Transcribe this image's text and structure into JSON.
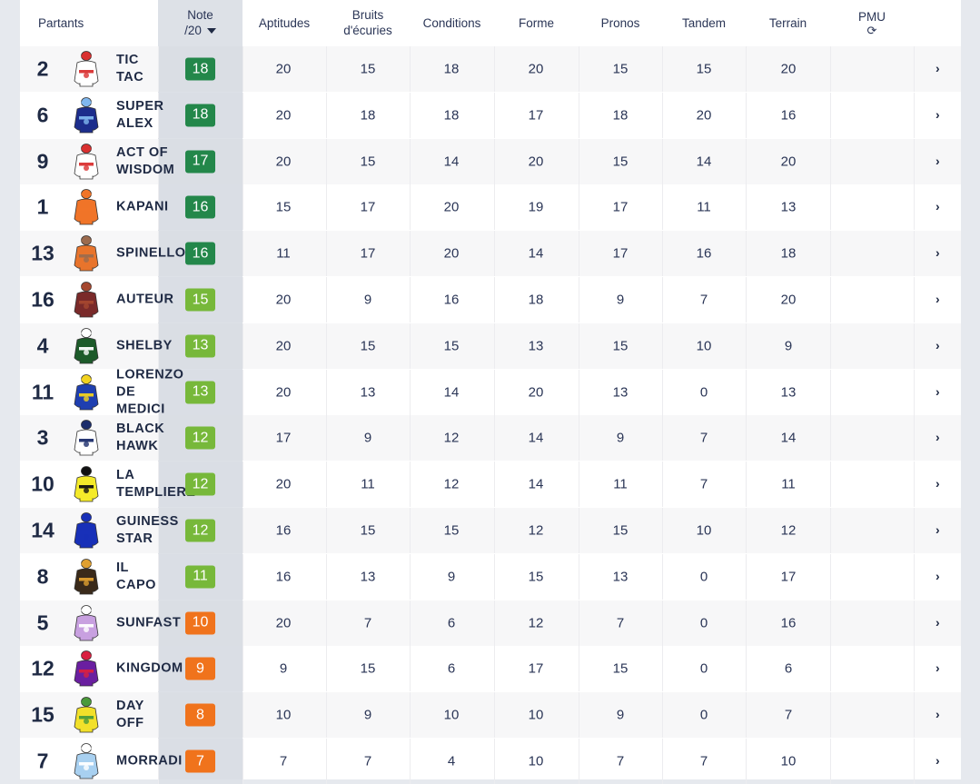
{
  "header": {
    "partants": "Partants",
    "note_line1": "Note",
    "note_line2": "/20",
    "aptitudes": "Aptitudes",
    "bruits_line1": "Bruits",
    "bruits_line2": "d'écuries",
    "conditions": "Conditions",
    "forme": "Forme",
    "pronos": "Pronos",
    "tandem": "Tandem",
    "terrain": "Terrain",
    "pmu": "PMU",
    "refresh_glyph": "⟳"
  },
  "colors": {
    "dark_green": "#23874a",
    "light_green": "#77b83a",
    "orange": "#f0731c"
  },
  "chevron": "›",
  "rows": [
    {
      "num": "2",
      "name": "TIC\nTAC",
      "note": "18",
      "note_color": "#23874a",
      "silk": [
        "#ffffff",
        "#d93030"
      ],
      "apt": "20",
      "bruits": "15",
      "cond": "18",
      "forme": "20",
      "pronos": "15",
      "tandem": "15",
      "terrain": "20"
    },
    {
      "num": "6",
      "name": "SUPER\nALEX",
      "note": "18",
      "note_color": "#23874a",
      "silk": [
        "#1c2d8c",
        "#7fb7ef"
      ],
      "apt": "20",
      "bruits": "18",
      "cond": "18",
      "forme": "17",
      "pronos": "18",
      "tandem": "20",
      "terrain": "16"
    },
    {
      "num": "9",
      "name": "ACT OF\nWISDOM",
      "note": "17",
      "note_color": "#23874a",
      "silk": [
        "#ffffff",
        "#d93030"
      ],
      "apt": "20",
      "bruits": "15",
      "cond": "14",
      "forme": "20",
      "pronos": "15",
      "tandem": "14",
      "terrain": "20"
    },
    {
      "num": "1",
      "name": "KAPANI",
      "note": "16",
      "note_color": "#23874a",
      "silk": [
        "#f07428",
        "#f07428"
      ],
      "apt": "15",
      "bruits": "17",
      "cond": "20",
      "forme": "19",
      "pronos": "17",
      "tandem": "11",
      "terrain": "13"
    },
    {
      "num": "13",
      "name": "SPINELLO",
      "note": "16",
      "note_color": "#23874a",
      "silk": [
        "#e8742c",
        "#9c6b4e"
      ],
      "apt": "11",
      "bruits": "17",
      "cond": "20",
      "forme": "14",
      "pronos": "17",
      "tandem": "16",
      "terrain": "18"
    },
    {
      "num": "16",
      "name": "AUTEUR",
      "note": "15",
      "note_color": "#77b83a",
      "silk": [
        "#7a2a2a",
        "#a5472f"
      ],
      "apt": "20",
      "bruits": "9",
      "cond": "16",
      "forme": "18",
      "pronos": "9",
      "tandem": "7",
      "terrain": "20"
    },
    {
      "num": "4",
      "name": "SHELBY",
      "note": "13",
      "note_color": "#77b83a",
      "silk": [
        "#1d5b2a",
        "#ffffff"
      ],
      "apt": "20",
      "bruits": "15",
      "cond": "15",
      "forme": "13",
      "pronos": "15",
      "tandem": "10",
      "terrain": "9"
    },
    {
      "num": "11",
      "name": "LORENZO\nDE\nMEDICI",
      "note": "13",
      "note_color": "#77b83a",
      "silk": [
        "#1f3fb0",
        "#f2d21f"
      ],
      "apt": "20",
      "bruits": "13",
      "cond": "14",
      "forme": "20",
      "pronos": "13",
      "tandem": "0",
      "terrain": "13"
    },
    {
      "num": "3",
      "name": "BLACK\nHAWK",
      "note": "12",
      "note_color": "#77b83a",
      "silk": [
        "#ffffff",
        "#1c2d6b"
      ],
      "apt": "17",
      "bruits": "9",
      "cond": "12",
      "forme": "14",
      "pronos": "9",
      "tandem": "7",
      "terrain": "14"
    },
    {
      "num": "10",
      "name": "LA\nTEMPLIERE",
      "note": "12",
      "note_color": "#77b83a",
      "silk": [
        "#f4ea2a",
        "#111111"
      ],
      "apt": "20",
      "bruits": "11",
      "cond": "12",
      "forme": "14",
      "pronos": "11",
      "tandem": "7",
      "terrain": "11"
    },
    {
      "num": "14",
      "name": "GUINESS\nSTAR",
      "note": "12",
      "note_color": "#77b83a",
      "silk": [
        "#1830b8",
        "#1830b8"
      ],
      "apt": "16",
      "bruits": "15",
      "cond": "15",
      "forme": "12",
      "pronos": "15",
      "tandem": "10",
      "terrain": "12"
    },
    {
      "num": "8",
      "name": "IL\nCAPO",
      "note": "11",
      "note_color": "#77b83a",
      "silk": [
        "#3a2a1a",
        "#e0a030"
      ],
      "apt": "16",
      "bruits": "13",
      "cond": "9",
      "forme": "15",
      "pronos": "13",
      "tandem": "0",
      "terrain": "17"
    },
    {
      "num": "5",
      "name": "SUNFAST",
      "note": "10",
      "note_color": "#f0731c",
      "silk": [
        "#c8a0e0",
        "#ffffff"
      ],
      "apt": "20",
      "bruits": "7",
      "cond": "6",
      "forme": "12",
      "pronos": "7",
      "tandem": "0",
      "terrain": "16"
    },
    {
      "num": "12",
      "name": "KINGDOM",
      "note": "9",
      "note_color": "#f0731c",
      "silk": [
        "#6a1fa0",
        "#d92040"
      ],
      "apt": "9",
      "bruits": "15",
      "cond": "6",
      "forme": "17",
      "pronos": "15",
      "tandem": "0",
      "terrain": "6"
    },
    {
      "num": "15",
      "name": "DAY\nOFF",
      "note": "8",
      "note_color": "#f0731c",
      "silk": [
        "#f2e02a",
        "#4a9a3a"
      ],
      "apt": "10",
      "bruits": "9",
      "cond": "10",
      "forme": "10",
      "pronos": "9",
      "tandem": "0",
      "terrain": "7"
    },
    {
      "num": "7",
      "name": "MORRADI",
      "note": "7",
      "note_color": "#f0731c",
      "silk": [
        "#a8d0f0",
        "#ffffff"
      ],
      "apt": "7",
      "bruits": "7",
      "cond": "4",
      "forme": "10",
      "pronos": "7",
      "tandem": "7",
      "terrain": "10"
    }
  ]
}
